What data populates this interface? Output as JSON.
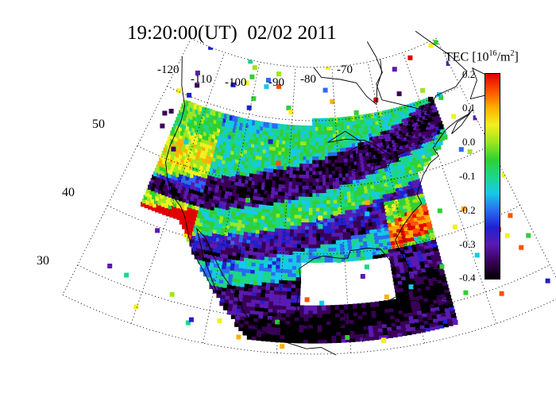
{
  "title": {
    "time": "19:20:00(UT)",
    "date": "02/02 2011"
  },
  "colorbar": {
    "label_prefix": "TEC [10",
    "label_exponent": "16",
    "label_suffix": "/m",
    "label_exponent2": "2",
    "label_close": "]",
    "ticks": [
      "0.2",
      "0.1",
      "0.0",
      "-0.1",
      "-0.2",
      "-0.3",
      "-0.4"
    ],
    "min": -0.4,
    "max": 0.2,
    "colormap": [
      "#000000",
      "#3a0058",
      "#5a1ab0",
      "#2020d0",
      "#2a6cf0",
      "#18c8e6",
      "#1cd68a",
      "#30d030",
      "#9ee620",
      "#f2f020",
      "#ffb000",
      "#ff5000",
      "#e00000"
    ]
  },
  "map": {
    "projection": "conic",
    "longitude_labels": [
      "-120",
      "-110",
      "-100",
      "-90",
      "-80",
      "-70"
    ],
    "latitude_labels": [
      "50",
      "40",
      "30"
    ],
    "graticule_style": "dotted",
    "coastline_color": "#000000"
  }
}
